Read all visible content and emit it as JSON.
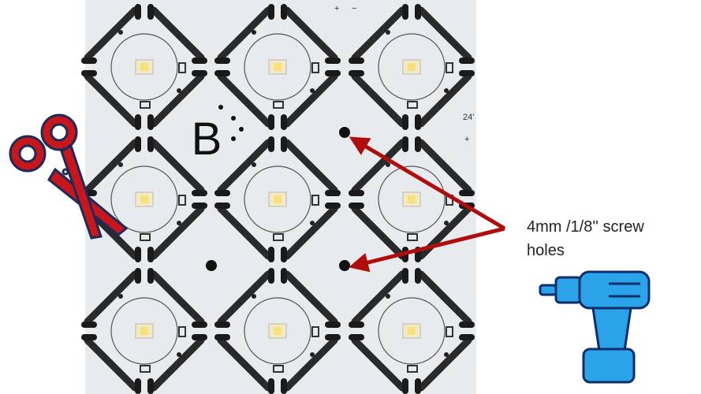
{
  "board": {
    "logo": "B",
    "top_marks": [
      "+",
      "−"
    ],
    "side_marks": [
      "24'",
      "+"
    ]
  },
  "annotation": {
    "lines": [
      "4mm /1/8'' screw",
      "holes"
    ]
  }
}
